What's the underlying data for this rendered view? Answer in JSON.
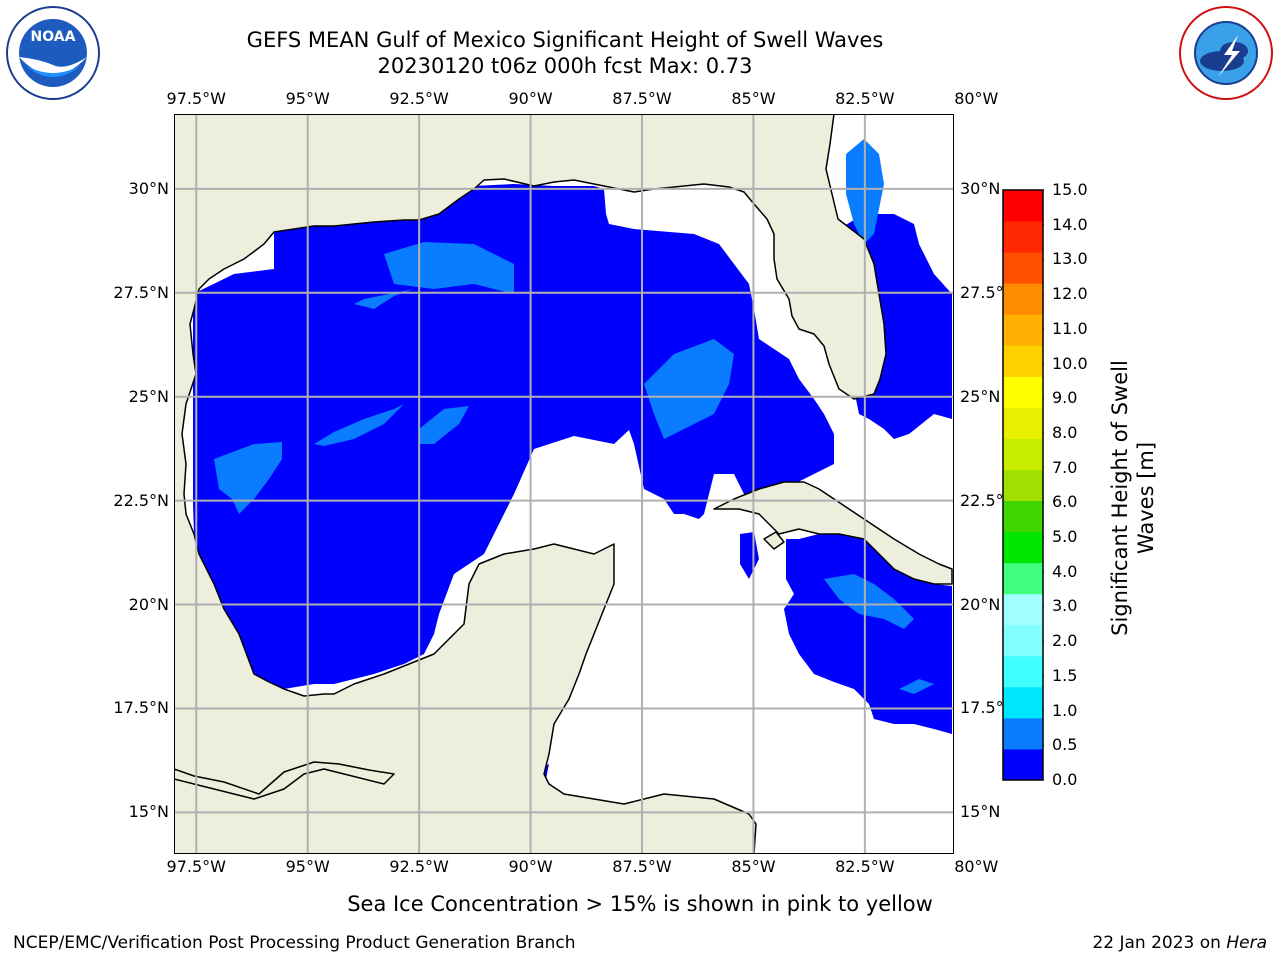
{
  "header": {
    "title_line1": "GEFS MEAN Gulf of Mexico Significant Height of Swell Waves",
    "title_line2": "20230120 t06z 000h fcst   Max: 0.73"
  },
  "logos": {
    "left": {
      "name": "NOAA",
      "ring_text": "NATIONAL OCEANIC AND ATMOSPHERIC ADMINISTRATION",
      "ring_text_bottom": "U.S. DEPARTMENT OF COMMERCE"
    },
    "right": {
      "ring_text": "NATIONAL WEATHER SERVICE"
    }
  },
  "map": {
    "lon_labels": [
      "97.5°W",
      "95°W",
      "92.5°W",
      "90°W",
      "87.5°W",
      "85°W",
      "82.5°W",
      "80°W"
    ],
    "lat_labels": [
      "30°N",
      "27.5°N",
      "25°N",
      "22.5°N",
      "20°N",
      "17.5°N",
      "15°N"
    ],
    "lon_range": [
      -98,
      -80.5
    ],
    "lat_range": [
      14,
      31.8
    ],
    "colors": {
      "land": "#eeeedd",
      "ocean_low": "#0000ff",
      "ocean_mid": "#0a7cff",
      "grid": "#b0b0b0"
    }
  },
  "colorbar": {
    "label": "Significant Height of Swell Waves [m]",
    "ticks": [
      "15.0",
      "14.0",
      "13.0",
      "12.0",
      "11.0",
      "10.0",
      "9.0",
      "8.0",
      "7.0",
      "6.0",
      "5.0",
      "4.0",
      "3.0",
      "2.0",
      "1.5",
      "1.0",
      "0.5",
      "0.0"
    ],
    "colors_bottom_to_top": [
      "#0000ff",
      "#0a7cff",
      "#00e6ff",
      "#40ffff",
      "#80ffff",
      "#a0ffff",
      "#40ff80",
      "#00e600",
      "#40d400",
      "#a0e000",
      "#c8ec00",
      "#e6f000",
      "#ffff00",
      "#ffd000",
      "#ffb000",
      "#ff8c00",
      "#ff5000",
      "#ff2800",
      "#ff0000"
    ]
  },
  "footer": {
    "note": "Sea Ice Concentration > 15% is shown in pink to yellow",
    "left": "NCEP/EMC/Verification Post Processing Product Generation Branch",
    "right_date": "22 Jan 2023 on ",
    "right_host": "Hera"
  }
}
